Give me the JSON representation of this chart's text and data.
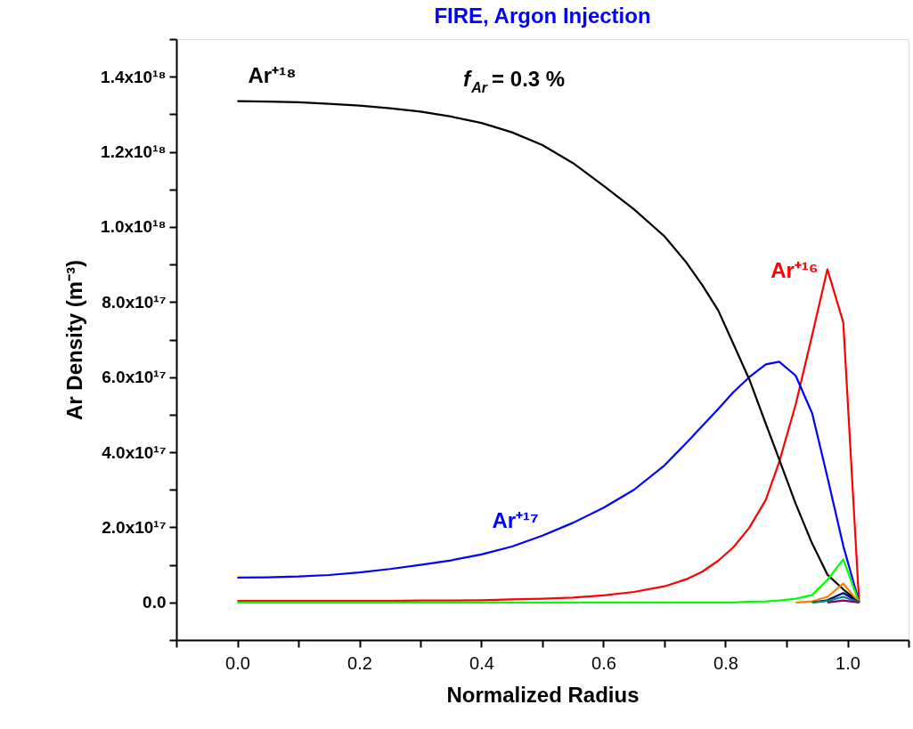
{
  "chart_data": {
    "type": "line",
    "title": "FIRE, Argon Injection",
    "xlabel": "Normalized Radius",
    "ylabel": "Ar Density (m⁻³)",
    "annotations": [
      "f$_{Ar}$ = 0.3 %"
    ],
    "x": [
      0,
      0.05,
      0.1,
      0.15,
      0.2,
      0.25,
      0.3,
      0.35,
      0.4,
      0.45,
      0.5,
      0.55,
      0.6,
      0.65,
      0.7,
      0.736,
      0.762,
      0.788,
      0.813,
      0.839,
      0.866,
      0.888,
      0.915,
      0.942,
      0.967,
      0.993,
      1.019
    ],
    "series": [
      {
        "name": "Ar⁺¹⁶",
        "color": "#ff0000",
        "values": [
          4000000000000000.0,
          4000000000000000.0,
          4000000000000000.0,
          4000000000000000.0,
          4000000000000000.0,
          4000000000000000.0,
          5000000000000000.0,
          5000000000000000.0,
          6000000000000000.0,
          8000000000000000.0,
          1e+16,
          1.3e+16,
          1.9e+16,
          2.8e+16,
          4.3e+16,
          6.2e+16,
          8.2e+16,
          1.11e+17,
          1.47e+17,
          1.99e+17,
          2.73e+17,
          3.74e+17,
          5.27e+17,
          7.12e+17,
          8.87e+17,
          7.46e+17,
          0
        ]
      },
      {
        "name": "Ar⁺¹⁷",
        "color": "#0000ff",
        "values": [
          6.6e+16,
          6.7e+16,
          6.9e+16,
          7.3e+16,
          8e+16,
          8.9e+16,
          1e+17,
          1.12e+17,
          1.28e+17,
          1.49e+17,
          1.78e+17,
          2.12e+17,
          2.52e+17,
          3e+17,
          3.65e+17,
          4.25e+17,
          4.7e+17,
          5.15e+17,
          5.6e+17,
          6e+17,
          6.34e+17,
          6.41e+17,
          6.04e+17,
          5.04e+17,
          3.34e+17,
          1.51e+17,
          0
        ]
      },
      {
        "name": "Ar⁺¹⁸",
        "color": "#000000",
        "values": [
          1.335e+18,
          1.334e+18,
          1.332e+18,
          1.328e+18,
          1.323e+18,
          1.316e+18,
          1.307e+18,
          1.294e+18,
          1.277e+18,
          1.252e+18,
          1.218e+18,
          1.17e+18,
          1.11e+18,
          1.047e+18,
          9.75e+17,
          9.05e+17,
          8.45e+17,
          7.78e+17,
          6.88e+17,
          5.94e+17,
          4.76e+17,
          3.81e+17,
          2.63e+17,
          1.57e+17,
          7.4e+16,
          3.5e+16,
          0
        ]
      },
      {
        "color": "#00ff00",
        "values": [
          0,
          0,
          0,
          0,
          0,
          0,
          0,
          0,
          0,
          0,
          0,
          0,
          0,
          0,
          0,
          0,
          0,
          0,
          0,
          2000000000000000.0,
          3000000000000000.0,
          5000000000000000.0,
          1e+16,
          2e+16,
          6e+16,
          1.15e+17,
          0
        ]
      },
      {
        "color": "#ff8000",
        "values": [
          null,
          null,
          null,
          null,
          null,
          null,
          null,
          null,
          null,
          null,
          null,
          null,
          null,
          null,
          null,
          null,
          null,
          null,
          null,
          null,
          null,
          null,
          0,
          3000000000000000.0,
          1.5e+16,
          5e+16,
          0
        ]
      },
      {
        "color": "#000080",
        "values": [
          null,
          null,
          null,
          null,
          null,
          null,
          null,
          null,
          null,
          null,
          null,
          null,
          null,
          null,
          null,
          null,
          null,
          null,
          null,
          null,
          null,
          null,
          null,
          0,
          6000000000000000.0,
          2.5e+16,
          0
        ]
      },
      {
        "color": "#008080",
        "values": [
          null,
          null,
          null,
          null,
          null,
          null,
          null,
          null,
          null,
          null,
          null,
          null,
          null,
          null,
          null,
          null,
          null,
          null,
          null,
          null,
          null,
          null,
          null,
          0,
          4000000000000000.0,
          1.5e+16,
          0
        ]
      },
      {
        "color": "#800080",
        "values": [
          null,
          null,
          null,
          null,
          null,
          null,
          null,
          null,
          null,
          null,
          null,
          null,
          null,
          null,
          null,
          null,
          null,
          null,
          null,
          null,
          null,
          null,
          null,
          null,
          0,
          5000000000000000.0,
          0
        ]
      }
    ],
    "xlim": [
      -0.1,
      1.1
    ],
    "xticks": [
      {
        "value": -0.1,
        "label": null
      },
      {
        "value": 0,
        "label": "0.0"
      },
      {
        "value": 0.1,
        "label": null
      },
      0.2,
      {
        "value": 0.3,
        "label": null
      },
      0.4,
      {
        "value": 0.5,
        "label": null
      },
      0.6,
      {
        "value": 0.7,
        "label": null
      },
      0.8,
      {
        "value": 0.9,
        "label": null
      },
      {
        "value": 1,
        "label": "1.0"
      },
      {
        "value": 1.1,
        "label": null
      }
    ],
    "ylim": [
      -1e+17,
      1.5e+18
    ],
    "yticks": [
      {
        "value": -1e+17,
        "label": null
      },
      {
        "value": 0,
        "label": "0.0"
      },
      {
        "value": 1e+17,
        "label": null
      },
      {
        "value": 2e+17,
        "label": "2.0x10¹⁷"
      },
      {
        "value": 3e+17,
        "label": null
      },
      {
        "value": 4e+17,
        "label": "4.0x10¹⁷"
      },
      {
        "value": 5e+17,
        "label": null
      },
      {
        "value": 6e+17,
        "label": "6.0x10¹⁷"
      },
      {
        "value": 7e+17,
        "label": null
      },
      {
        "value": 8e+17,
        "label": "8.0x10¹⁷"
      },
      {
        "value": 9e+17,
        "label": null
      },
      {
        "value": 1e+18,
        "label": "1.0x10¹⁸"
      },
      {
        "value": 1.1e+18,
        "label": null
      },
      {
        "value": 1.2e+18,
        "label": "1.2x10¹⁸"
      },
      {
        "value": 1.3e+18,
        "label": null
      },
      {
        "value": 1.4e+18,
        "label": "1.4x10¹⁸"
      },
      {
        "value": 1.5e+18,
        "label": null
      }
    ],
    "grid": false,
    "marker": "none",
    "line_style": "solid"
  }
}
